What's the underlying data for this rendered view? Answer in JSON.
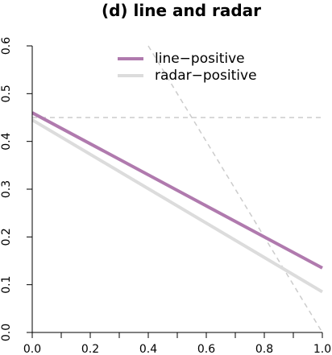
{
  "chart_data": {
    "type": "line",
    "title": "(d) line and radar",
    "xlabel": "",
    "ylabel": "",
    "xlim": [
      0.0,
      1.0
    ],
    "ylim": [
      0.0,
      0.6
    ],
    "x_ticks": [
      "0.0",
      "0.2",
      "0.4",
      "0.6",
      "0.8",
      "1.0"
    ],
    "y_ticks": [
      "0.0",
      "0.1",
      "0.2",
      "0.3",
      "0.4",
      "0.5",
      "0.6"
    ],
    "grid": false,
    "legend_position": "top-center",
    "series": [
      {
        "name": "line−positive",
        "color": "#b07aae",
        "x": [
          0.0,
          1.0
        ],
        "y": [
          0.46,
          0.135
        ]
      },
      {
        "name": "radar−positive",
        "color": "#dcdcdc",
        "x": [
          0.0,
          1.0
        ],
        "y": [
          0.445,
          0.085
        ]
      }
    ],
    "reference_lines": [
      {
        "style": "dashed",
        "color": "#cccccc",
        "x": [
          0.0,
          1.0
        ],
        "y": [
          0.45,
          0.45
        ]
      },
      {
        "style": "dashed",
        "color": "#cccccc",
        "x": [
          0.4,
          1.0
        ],
        "y": [
          0.6,
          0.0
        ]
      }
    ]
  }
}
